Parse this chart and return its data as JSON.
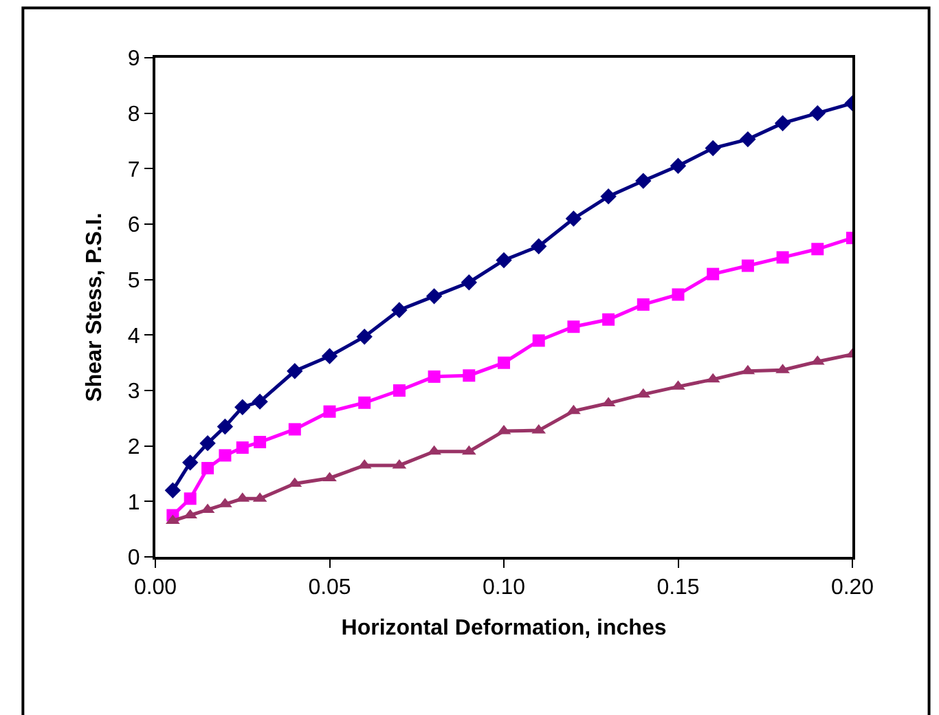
{
  "chart_data": {
    "type": "line",
    "xlabel": "Horizontal Deformation, inches",
    "ylabel": "Shear Stess, P.S.I.",
    "x": [
      0.005,
      0.01,
      0.015,
      0.02,
      0.025,
      0.03,
      0.04,
      0.05,
      0.06,
      0.07,
      0.08,
      0.09,
      0.1,
      0.11,
      0.12,
      0.13,
      0.14,
      0.15,
      0.16,
      0.17,
      0.18,
      0.19,
      0.2
    ],
    "series": [
      {
        "color": "#000080",
        "marker": "diamond",
        "values": [
          1.2,
          1.7,
          2.05,
          2.35,
          2.7,
          2.8,
          3.35,
          3.62,
          3.97,
          4.45,
          4.7,
          4.95,
          5.35,
          5.6,
          6.1,
          6.5,
          6.78,
          7.05,
          7.37,
          7.53,
          7.82,
          8.0,
          8.18
        ]
      },
      {
        "color": "#ff00ff",
        "marker": "square",
        "values": [
          0.75,
          1.05,
          1.6,
          1.83,
          1.97,
          2.07,
          2.3,
          2.62,
          2.78,
          3.0,
          3.25,
          3.27,
          3.5,
          3.9,
          4.15,
          4.28,
          4.55,
          4.73,
          5.1,
          5.25,
          5.4,
          5.55,
          5.75
        ]
      },
      {
        "color": "#993366",
        "marker": "triangle",
        "values": [
          0.65,
          0.75,
          0.85,
          0.95,
          1.05,
          1.05,
          1.32,
          1.42,
          1.65,
          1.65,
          1.9,
          1.9,
          2.27,
          2.28,
          2.63,
          2.77,
          2.93,
          3.07,
          3.2,
          3.35,
          3.37,
          3.52,
          3.65
        ]
      }
    ],
    "xlim": [
      0,
      0.2
    ],
    "xticks": [
      {
        "value": 0,
        "label": "0.00"
      },
      {
        "value": 0.05,
        "label": "0.05"
      },
      {
        "value": 0.1,
        "label": "0.10"
      },
      {
        "value": 0.15,
        "label": "0.15"
      },
      {
        "value": 0.2,
        "label": "0.20"
      }
    ],
    "ylim": [
      0,
      9
    ],
    "yticks": [
      0,
      1,
      2,
      3,
      4,
      5,
      6,
      7,
      8,
      9
    ]
  }
}
